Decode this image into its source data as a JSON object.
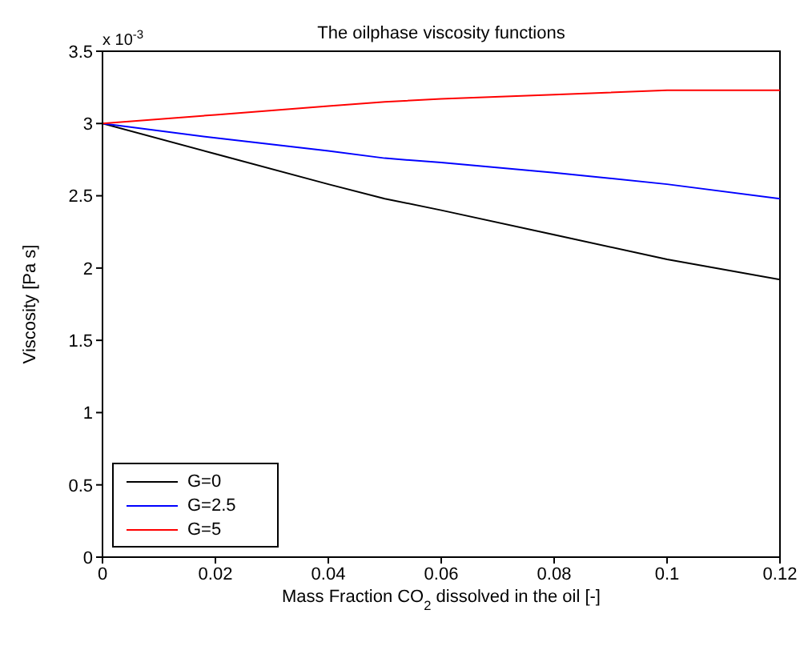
{
  "chart_data": {
    "type": "line",
    "title": "The oilphase viscosity functions",
    "xlabel": "Mass Fraction CO$_{2}$ dissolved in the oil [-]",
    "ylabel": "Viscosity [Pa s]",
    "annotations": [
      "x 10$^{-3}$"
    ],
    "x": [
      0,
      0.02,
      0.04,
      0.05,
      0.06,
      0.08,
      0.1,
      0.12
    ],
    "series": [
      {
        "name": "G=0",
        "color": "#000000",
        "values": [
          3,
          2.79,
          2.58,
          2.48,
          2.4,
          2.23,
          2.06,
          1.92
        ]
      },
      {
        "name": "G=2.5",
        "color": "#0000ff",
        "values": [
          3,
          2.9,
          2.81,
          2.76,
          2.73,
          2.66,
          2.58,
          2.48
        ]
      },
      {
        "name": "G=5",
        "color": "#ff0000",
        "values": [
          3,
          3.06,
          3.12,
          3.15,
          3.17,
          3.2,
          3.23,
          3.23
        ]
      }
    ],
    "xlim": [
      0,
      0.12
    ],
    "xticks": [
      0,
      0.02,
      0.04,
      0.06,
      0.08,
      0.1,
      0.12
    ],
    "ylim": [
      0,
      3.5
    ],
    "yticks": [
      0,
      0.5,
      1,
      1.5,
      2,
      2.5,
      3,
      3.5
    ],
    "grid": false,
    "legend": "bottom left",
    "marker": "none",
    "line_style": "solid"
  }
}
